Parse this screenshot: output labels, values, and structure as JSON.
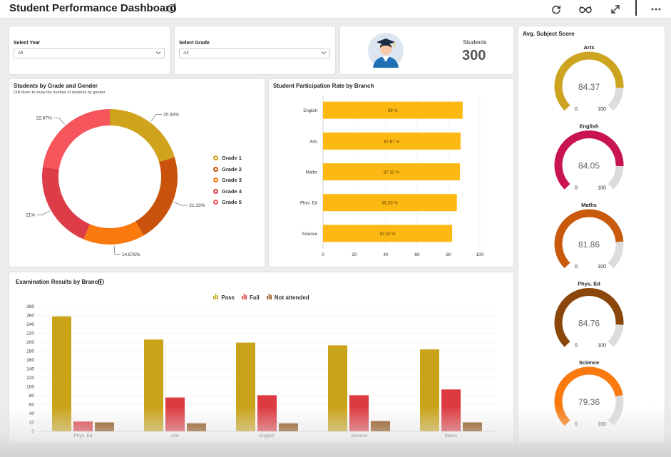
{
  "header": {
    "title": "Student Performance Dashboard"
  },
  "filters": {
    "year": {
      "label": "Select Year",
      "value": "All"
    },
    "grade": {
      "label": "Select Grade",
      "value": "All"
    }
  },
  "students_card": {
    "label": "Students",
    "value": "300"
  },
  "donut": {
    "title": "Students by Grade and Gender",
    "subtitle": "Drill down to show the number of students by gender.",
    "chart_data": {
      "type": "pie",
      "categories": [
        "Grade 1",
        "Grade 2",
        "Grade 3",
        "Grade 4",
        "Grade 5"
      ],
      "values": [
        20.33,
        21.33,
        14.676,
        21,
        22.67
      ],
      "labels": [
        "20.33%",
        "21.33%",
        "14.676%",
        "21%",
        "22.67%"
      ],
      "colors": [
        "#cfa41c",
        "#c9530c",
        "#fb7a0f",
        "#dd3d47",
        "#f7555c"
      ],
      "legend": "right"
    }
  },
  "participation": {
    "title": "Student Participation Rate by Branch",
    "chart_data": {
      "type": "bar",
      "orientation": "horizontal",
      "categories": [
        "English",
        "Arts",
        "Maths",
        "Phys. Ed",
        "Science"
      ],
      "values": [
        89,
        87.67,
        87.33,
        85.33,
        82.33
      ],
      "labels": [
        "89 %",
        "87.67 %",
        "87.33 %",
        "85.33 %",
        "82.33 %"
      ],
      "xticks": [
        "0",
        "20",
        "40",
        "60",
        "80",
        "100"
      ],
      "xlim": [
        0,
        100
      ],
      "color": "#fdb913",
      "grid": true
    }
  },
  "exam": {
    "title": "Examination Results by Branch",
    "chart_data": {
      "type": "bar",
      "categories": [
        "Phys. Ed",
        "Arts",
        "English",
        "Science",
        "Maths"
      ],
      "series": [
        {
          "name": "Pass",
          "color": "#c9a418",
          "values": [
            258,
            206,
            199,
            193,
            184
          ]
        },
        {
          "name": "Fail",
          "color": "#dd3a40",
          "values": [
            22,
            76,
            81,
            81,
            94
          ]
        },
        {
          "name": "Not attended",
          "color": "#8b4a0a",
          "values": [
            20,
            18,
            18,
            23,
            20
          ]
        }
      ],
      "yticks": [
        "0",
        "20",
        "40",
        "60",
        "80",
        "100",
        "120",
        "140",
        "160",
        "180",
        "200",
        "220",
        "240",
        "260",
        "280"
      ],
      "ylim": [
        0,
        280
      ],
      "legend": "top-center",
      "grid": true
    }
  },
  "gauges": {
    "title": "Avg. Subject Score",
    "items": [
      {
        "subject": "Arts",
        "value": 84.37,
        "value_label": "84.37",
        "min_label": "0",
        "max_label": "100",
        "color": "#cda41f"
      },
      {
        "subject": "English",
        "value": 84.05,
        "value_label": "84.05",
        "min_label": "0",
        "max_label": "100",
        "color": "#c9154f"
      },
      {
        "subject": "Maths",
        "value": 81.86,
        "value_label": "81.86",
        "min_label": "0",
        "max_label": "100",
        "color": "#c95a0c"
      },
      {
        "subject": "Phys. Ed",
        "value": 84.76,
        "value_label": "84.76",
        "min_label": "0",
        "max_label": "100",
        "color": "#8b470b"
      },
      {
        "subject": "Science",
        "value": 79.36,
        "value_label": "79.36",
        "min_label": "0",
        "max_label": "100",
        "color": "#fb7a0f"
      }
    ]
  },
  "icons": {
    "title_info": "info-icon",
    "refresh": "refresh-icon",
    "view": "glasses-icon",
    "expand": "expand-icon",
    "more": "more-icon",
    "avatar": "graduate-avatar-icon"
  }
}
